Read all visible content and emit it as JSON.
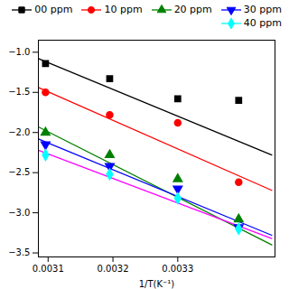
{
  "chart_data": {
    "type": "scatter",
    "xlabel": "1/T(K⁻¹)",
    "xlim": [
      0.003085,
      0.00345
    ],
    "ylim": [
      -3.55,
      -0.85
    ],
    "xticks": [
      0.0031,
      0.0032,
      0.0033
    ],
    "yticks": [
      {
        "value": -3.5,
        "label": "−3.5"
      },
      {
        "value": -3.0,
        "label": "−3.0"
      },
      {
        "value": -2.5,
        "label": "−2.5"
      },
      {
        "value": -2.0,
        "label": "−2.0"
      },
      {
        "value": -1.5,
        "label": "−1.5"
      },
      {
        "value": -1.0,
        "label": "−1.0"
      }
    ],
    "legend": "upper right",
    "series": [
      {
        "name": "00 ppm",
        "color": "black",
        "marker": "square",
        "x": [
          0.003096,
          0.003195,
          0.0033,
          0.003394
        ],
        "values": [
          -1.14,
          -1.33,
          -1.58,
          -1.6
        ],
        "fit": {
          "color": "black",
          "x": [
            0.003085,
            0.003445
          ],
          "values": [
            -1.08,
            -2.28
          ]
        }
      },
      {
        "name": "10 ppm",
        "color": "red",
        "marker": "circle",
        "x": [
          0.003096,
          0.003195,
          0.0033,
          0.003394
        ],
        "values": [
          -1.5,
          -1.78,
          -1.88,
          -2.62
        ],
        "fit": {
          "color": "red",
          "x": [
            0.003085,
            0.003445
          ],
          "values": [
            -1.44,
            -2.72
          ]
        }
      },
      {
        "name": "20 ppm",
        "color": "green",
        "marker": "triangle-up",
        "x": [
          0.003096,
          0.003195,
          0.0033,
          0.003394
        ],
        "values": [
          -2.0,
          -2.28,
          -2.58,
          -3.08
        ],
        "fit": {
          "color": "green",
          "x": [
            0.003085,
            0.003445
          ],
          "values": [
            -1.93,
            -3.4
          ]
        }
      },
      {
        "name": "30 ppm",
        "color": "blue",
        "marker": "triangle-down",
        "x": [
          0.003096,
          0.003195,
          0.0033,
          0.003394
        ],
        "values": [
          -2.15,
          -2.42,
          -2.7,
          -3.18
        ],
        "fit": {
          "color": "blue",
          "x": [
            0.003085,
            0.003445
          ],
          "values": [
            -2.08,
            -3.28
          ]
        }
      },
      {
        "name": "40 ppm",
        "color": "cyan",
        "marker": "diamond",
        "x": [
          0.003096,
          0.003195,
          0.0033,
          0.003394
        ],
        "values": [
          -2.28,
          -2.52,
          -2.82,
          -3.2
        ],
        "fit": {
          "color": "magenta",
          "x": [
            0.003085,
            0.003445
          ],
          "values": [
            -2.22,
            -3.32
          ]
        }
      }
    ]
  }
}
